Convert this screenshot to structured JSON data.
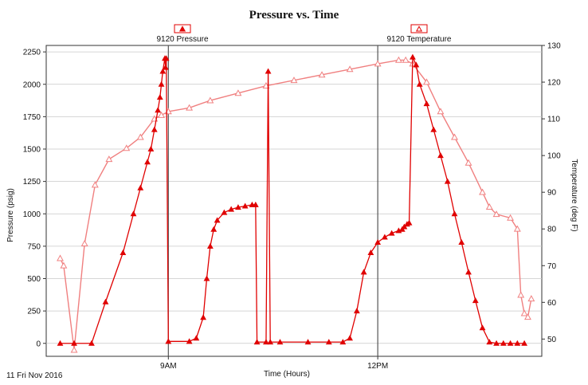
{
  "chart_data": {
    "type": "line",
    "title": "Pressure vs. Time",
    "xlabel": "Time (Hours)",
    "ylabel": "Pressure (psig)",
    "y2label": "Temperature (deg F)",
    "date_label": "11 Fri Nov 2016",
    "x_unit": "hours",
    "xlim": [
      7.25,
      14.35
    ],
    "ylim": [
      -100,
      2300
    ],
    "y2lim": [
      45.3,
      130
    ],
    "yticks": [
      0,
      250,
      500,
      750,
      1000,
      1250,
      1500,
      1750,
      2000,
      2250
    ],
    "y2ticks": [
      50,
      60,
      70,
      80,
      90,
      100,
      110,
      120,
      130
    ],
    "xticks": [
      {
        "x": 9.0,
        "label": "9AM"
      },
      {
        "x": 12.0,
        "label": "12PM"
      }
    ],
    "grid": true,
    "legend": "top",
    "colors": {
      "pressure": "#e00000",
      "temperature": "#f08080"
    },
    "series": [
      {
        "name": "9120 Pressure",
        "axis": "left",
        "marker": "filled-triangle",
        "x": [
          7.45,
          7.65,
          7.9,
          8.1,
          8.35,
          8.5,
          8.6,
          8.7,
          8.75,
          8.8,
          8.85,
          8.88,
          8.9,
          8.92,
          8.95,
          8.96,
          8.97,
          9.0,
          9.3,
          9.4,
          9.5,
          9.55,
          9.6,
          9.65,
          9.7,
          9.8,
          9.9,
          10.0,
          10.1,
          10.2,
          10.25,
          10.27,
          10.4,
          10.43,
          10.46,
          10.6,
          11.0,
          11.3,
          11.5,
          11.6,
          11.7,
          11.8,
          11.9,
          12.0,
          12.1,
          12.2,
          12.3,
          12.35,
          12.38,
          12.42,
          12.45,
          12.5,
          12.55,
          12.6,
          12.7,
          12.8,
          12.9,
          13.0,
          13.1,
          13.2,
          13.3,
          13.4,
          13.5,
          13.6,
          13.7,
          13.8,
          13.9,
          14.0,
          14.1
        ],
        "y": [
          0,
          0,
          0,
          320,
          700,
          1000,
          1200,
          1400,
          1500,
          1650,
          1800,
          1900,
          2000,
          2100,
          2200,
          2130,
          2200,
          15,
          15,
          40,
          200,
          500,
          750,
          880,
          950,
          1010,
          1035,
          1050,
          1060,
          1070,
          1070,
          10,
          10,
          2100,
          10,
          10,
          10,
          10,
          10,
          40,
          250,
          550,
          700,
          780,
          820,
          850,
          870,
          880,
          900,
          920,
          930,
          2210,
          2150,
          2000,
          1850,
          1650,
          1450,
          1250,
          1000,
          780,
          550,
          330,
          120,
          10,
          0,
          0,
          0,
          0,
          0
        ]
      },
      {
        "name": "9120 Temperature",
        "axis": "right",
        "marker": "open-triangle",
        "x": [
          7.45,
          7.5,
          7.65,
          7.8,
          7.95,
          8.15,
          8.4,
          8.6,
          8.8,
          8.9,
          9.0,
          9.3,
          9.6,
          10.0,
          10.4,
          10.8,
          11.2,
          11.6,
          12.0,
          12.3,
          12.4,
          12.5,
          12.7,
          12.9,
          13.1,
          13.3,
          13.5,
          13.6,
          13.7,
          13.9,
          14.0,
          14.05,
          14.1,
          14.15,
          14.2
        ],
        "y": [
          72,
          70,
          47,
          76,
          92,
          99,
          102,
          105,
          110,
          111,
          112,
          113,
          115,
          117,
          119,
          120.5,
          122,
          123.5,
          125,
          126,
          126,
          125,
          120,
          112,
          105,
          98,
          90,
          86,
          84,
          83,
          80,
          62,
          57,
          56,
          61
        ]
      }
    ]
  }
}
